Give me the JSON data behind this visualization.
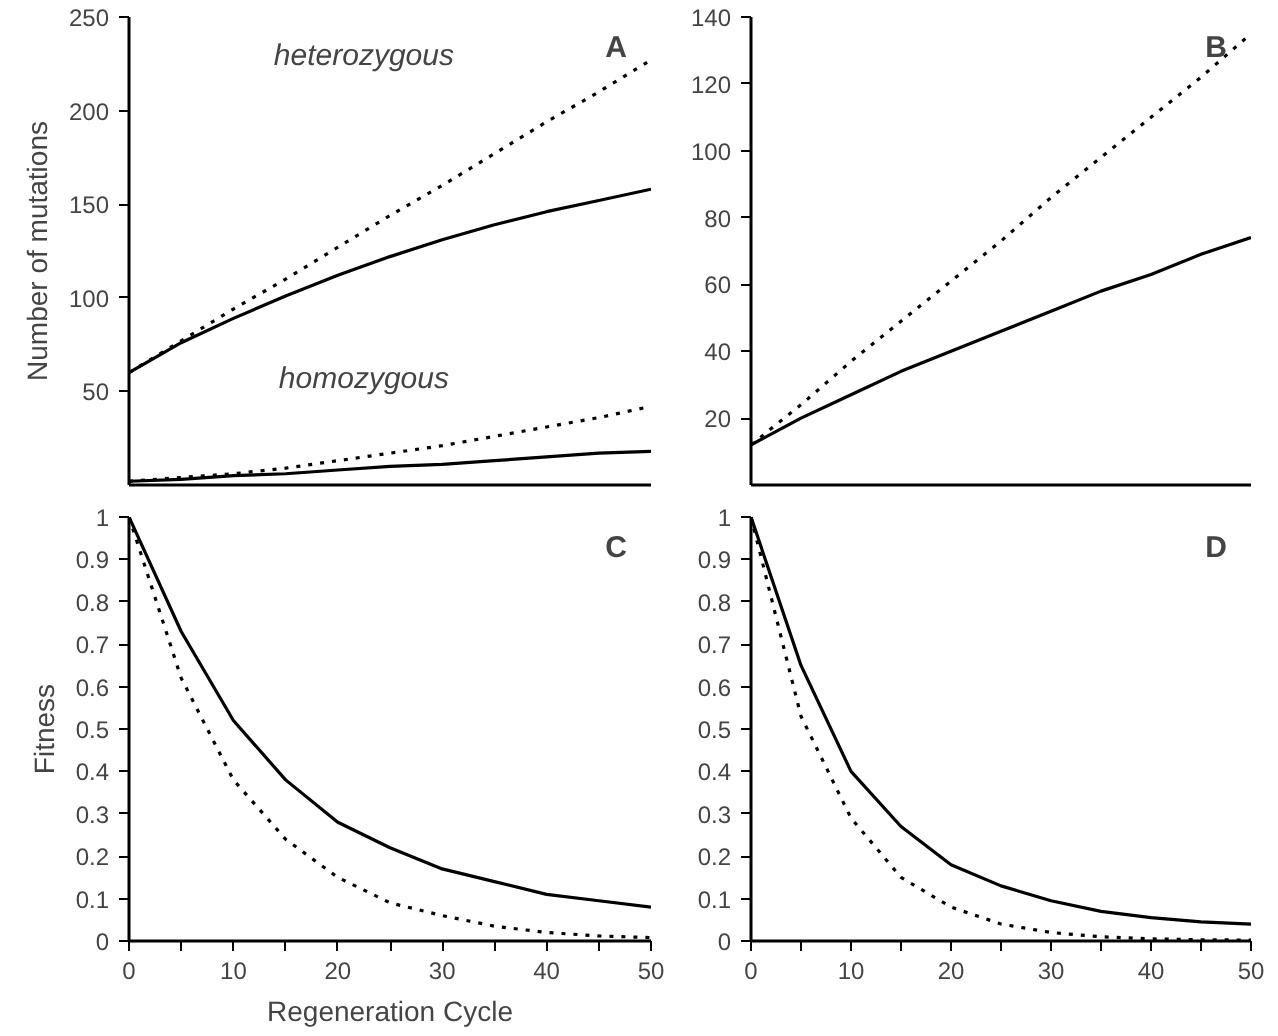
{
  "chart_data": [
    {
      "type": "line",
      "title": "A",
      "ylabel": "Number of mutations",
      "x": [
        0,
        5,
        10,
        15,
        20,
        25,
        30,
        35,
        40,
        45,
        50
      ],
      "xlim": [
        0,
        50
      ],
      "ylim": [
        0,
        250
      ],
      "yticks": [
        50,
        100,
        150,
        200,
        250
      ],
      "tick_labels": "y",
      "grid": false,
      "series": [
        {
          "color": "#000000",
          "line_style": "dotted",
          "values": [
            60,
            77,
            94,
            110,
            127,
            144,
            160,
            177,
            194,
            210,
            227
          ]
        },
        {
          "color": "#000000",
          "line_style": "solid",
          "values": [
            60,
            76,
            89,
            101,
            112,
            122,
            131,
            139,
            146,
            152,
            158
          ]
        },
        {
          "color": "#000000",
          "line_style": "dotted",
          "values": [
            2,
            4,
            6,
            9,
            13,
            17,
            21,
            26,
            31,
            36,
            42
          ]
        },
        {
          "color": "#000000",
          "line_style": "solid",
          "values": [
            2,
            3,
            5,
            6,
            8,
            10,
            11,
            13,
            15,
            17,
            18
          ]
        }
      ],
      "annotations": [
        "heterozygous",
        "homozygous"
      ]
    },
    {
      "type": "line",
      "title": "B",
      "x": [
        0,
        5,
        10,
        15,
        20,
        25,
        30,
        35,
        40,
        45,
        50
      ],
      "xlim": [
        0,
        50
      ],
      "ylim": [
        0,
        140
      ],
      "yticks": [
        20,
        40,
        60,
        80,
        100,
        120,
        140
      ],
      "tick_labels": "y",
      "grid": false,
      "series": [
        {
          "color": "#000000",
          "line_style": "dotted",
          "values": [
            12,
            24,
            37,
            49,
            61,
            73,
            86,
            98,
            110,
            122,
            135
          ]
        },
        {
          "color": "#000000",
          "line_style": "solid",
          "values": [
            12,
            20,
            27,
            34,
            40,
            46,
            52,
            58,
            63,
            69,
            74
          ]
        }
      ]
    },
    {
      "type": "line",
      "title": "C",
      "ylabel": "Fitness",
      "xlabel": "Regeneration Cycle",
      "x": [
        0,
        5,
        10,
        15,
        20,
        25,
        30,
        35,
        40,
        45,
        50
      ],
      "xlim": [
        0,
        50
      ],
      "ylim": [
        0,
        1
      ],
      "xticks": [
        0,
        {
          "value": 5,
          "label": null
        },
        10,
        {
          "value": 15,
          "label": null
        },
        20,
        {
          "value": 25,
          "label": null
        },
        30,
        {
          "value": 35,
          "label": null
        },
        40,
        {
          "value": 45,
          "label": null
        },
        50
      ],
      "yticks": [
        0,
        0.1,
        0.2,
        0.3,
        0.4,
        0.5,
        0.6,
        0.7,
        0.8,
        0.9,
        1
      ],
      "grid": false,
      "series": [
        {
          "color": "#000000",
          "line_style": "solid",
          "values": [
            1,
            0.73,
            0.52,
            0.38,
            0.28,
            0.22,
            0.17,
            0.14,
            0.11,
            0.095,
            0.08
          ]
        },
        {
          "color": "#000000",
          "line_style": "dotted",
          "values": [
            1,
            0.62,
            0.38,
            0.24,
            0.15,
            0.09,
            0.06,
            0.035,
            0.02,
            0.012,
            0.008
          ]
        }
      ]
    },
    {
      "type": "line",
      "title": "D",
      "x": [
        0,
        5,
        10,
        15,
        20,
        25,
        30,
        35,
        40,
        45,
        50
      ],
      "xlim": [
        0,
        50
      ],
      "ylim": [
        0,
        1
      ],
      "xticks": [
        0,
        {
          "value": 5,
          "label": null
        },
        10,
        {
          "value": 15,
          "label": null
        },
        20,
        {
          "value": 25,
          "label": null
        },
        30,
        {
          "value": 35,
          "label": null
        },
        40,
        {
          "value": 45,
          "label": null
        },
        50
      ],
      "yticks": [
        0,
        0.1,
        0.2,
        0.3,
        0.4,
        0.5,
        0.6,
        0.7,
        0.8,
        0.9,
        1
      ],
      "grid": false,
      "series": [
        {
          "color": "#000000",
          "line_style": "solid",
          "values": [
            1,
            0.65,
            0.4,
            0.27,
            0.18,
            0.13,
            0.095,
            0.07,
            0.055,
            0.045,
            0.04
          ]
        },
        {
          "color": "#000000",
          "line_style": "dotted",
          "values": [
            1,
            0.53,
            0.29,
            0.15,
            0.08,
            0.04,
            0.02,
            0.01,
            0.005,
            0.003,
            0.002
          ]
        }
      ]
    }
  ]
}
